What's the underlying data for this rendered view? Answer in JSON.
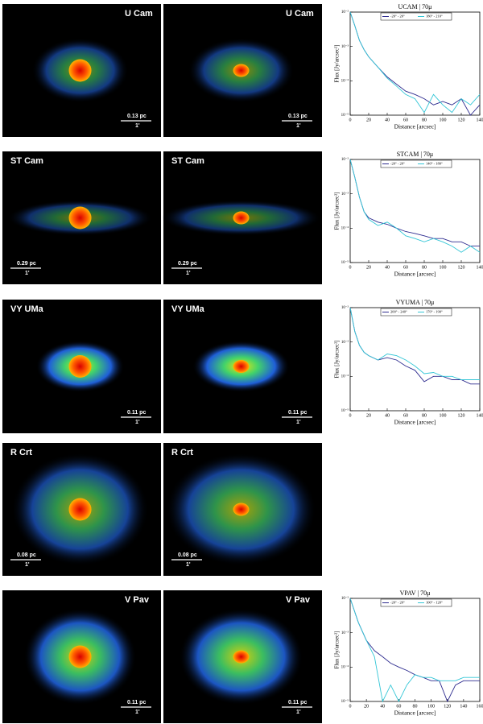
{
  "rows": [
    {
      "left_label": "U Cam",
      "left_scale": "0.13 pc",
      "left_arcmin": "1'",
      "right_label": "U Cam",
      "right_scale": "0.13 pc",
      "right_arcmin": "1'"
    },
    {
      "left_label": "ST Cam",
      "left_scale": "0.29 pc",
      "left_arcmin": "1'",
      "right_label": "ST Cam",
      "right_scale": "0.29 pc",
      "right_arcmin": "1'"
    },
    {
      "left_label": "VY UMa",
      "left_scale": "0.11 pc",
      "left_arcmin": "1'",
      "right_label": "VY UMa",
      "right_scale": "0.11 pc",
      "right_arcmin": "1'"
    },
    {
      "left_label": "R Crt",
      "left_scale": "0.08 pc",
      "left_arcmin": "1'",
      "right_label": "R Crt",
      "right_scale": "0.08 pc",
      "right_arcmin": "1'"
    },
    {
      "left_label": "V Pav",
      "left_scale": "0.11 pc",
      "left_arcmin": "1'",
      "right_label": "V Pav",
      "right_scale": "0.11 pc",
      "right_arcmin": "1'"
    }
  ],
  "chart_data": [
    {
      "type": "line",
      "title": "UCAM | 70μ",
      "xlabel": "Distance [arcsec]",
      "ylabel": "Flux [Jy/arcsec²]",
      "log_y": true,
      "x": [
        0,
        5,
        10,
        15,
        20,
        30,
        40,
        50,
        60,
        70,
        80,
        90,
        100,
        110,
        120,
        130,
        140
      ],
      "series": [
        {
          "name": "-20° - 20°",
          "color": "#2e2c8f",
          "values": [
            0.01,
            0.004,
            0.0015,
            0.0008,
            0.0005,
            0.00025,
            0.00013,
            8e-05,
            5e-05,
            4e-05,
            3e-05,
            2e-05,
            2.5e-05,
            2e-05,
            3e-05,
            1e-05,
            2e-05
          ]
        },
        {
          "name": "180° - 210°",
          "color": "#33c6d6",
          "values": [
            0.01,
            0.004,
            0.0015,
            0.0008,
            0.0005,
            0.00025,
            0.00012,
            7e-05,
            4e-05,
            3e-05,
            1.2e-05,
            4e-05,
            2e-05,
            1.2e-05,
            3e-05,
            2e-05,
            4e-05
          ]
        }
      ],
      "xlim": [
        0,
        140
      ],
      "xticks": [
        0,
        20,
        40,
        60,
        80,
        100,
        120,
        140
      ],
      "ylim": [
        1e-05,
        0.01
      ],
      "yticks": [
        {
          "value": 1e-05,
          "label": "10⁻⁵"
        },
        {
          "value": 0.0001,
          "label": "10⁻⁴"
        },
        {
          "value": 0.001,
          "label": "10⁻³"
        },
        {
          "value": 0.01,
          "label": "10⁻²"
        }
      ]
    },
    {
      "type": "line",
      "title": "STCAM | 70μ",
      "xlabel": "Distance [arcsec]",
      "ylabel": "Flux [Jy/arcsec²]",
      "log_y": true,
      "x": [
        0,
        5,
        10,
        15,
        20,
        30,
        40,
        50,
        60,
        70,
        80,
        90,
        100,
        110,
        120,
        130,
        140
      ],
      "series": [
        {
          "name": "-20° - 20°",
          "color": "#2e2c8f",
          "values": [
            0.01,
            0.003,
            0.0008,
            0.0003,
            0.0002,
            0.00015,
            0.00013,
            0.0001,
            8e-05,
            7e-05,
            6e-05,
            5e-05,
            5e-05,
            4e-05,
            4e-05,
            3e-05,
            3e-05
          ]
        },
        {
          "name": "140° - 180°",
          "color": "#33c6d6",
          "values": [
            0.01,
            0.003,
            0.0008,
            0.0003,
            0.00018,
            0.00012,
            0.00015,
            0.0001,
            6e-05,
            5e-05,
            4e-05,
            5e-05,
            4e-05,
            3e-05,
            2e-05,
            3e-05,
            2e-05
          ]
        }
      ],
      "xlim": [
        0,
        140
      ],
      "xticks": [
        0,
        20,
        40,
        60,
        80,
        100,
        120,
        140
      ],
      "ylim": [
        1e-05,
        0.01
      ],
      "yticks": [
        {
          "value": 1e-05,
          "label": "10⁻⁵"
        },
        {
          "value": 0.0001,
          "label": "10⁻⁴"
        },
        {
          "value": 0.001,
          "label": "10⁻³"
        },
        {
          "value": 0.01,
          "label": "10⁻²"
        }
      ]
    },
    {
      "type": "line",
      "title": "VYUMA | 70μ",
      "xlabel": "Distance [arcsec]",
      "ylabel": "Flux [Jy/arcsec²]",
      "log_y": true,
      "x": [
        0,
        5,
        10,
        15,
        20,
        30,
        40,
        50,
        60,
        70,
        80,
        90,
        100,
        110,
        120,
        130,
        140
      ],
      "series": [
        {
          "name": "200° - 240°",
          "color": "#2e2c8f",
          "values": [
            0.01,
            0.002,
            0.0008,
            0.0005,
            0.0004,
            0.0003,
            0.00035,
            0.0003,
            0.0002,
            0.00015,
            7e-05,
            0.0001,
            0.0001,
            8e-05,
            8e-05,
            6e-05,
            6e-05
          ]
        },
        {
          "name": "170° - 190°",
          "color": "#33c6d6",
          "values": [
            0.01,
            0.002,
            0.0008,
            0.0005,
            0.0004,
            0.0003,
            0.00045,
            0.0004,
            0.0003,
            0.0002,
            0.00012,
            0.00013,
            0.0001,
            0.0001,
            8e-05,
            8e-05,
            8e-05
          ]
        }
      ],
      "xlim": [
        0,
        140
      ],
      "xticks": [
        0,
        20,
        40,
        60,
        80,
        100,
        120,
        140
      ],
      "ylim": [
        1e-05,
        0.01
      ],
      "yticks": [
        {
          "value": 1e-05,
          "label": "10⁻⁵"
        },
        {
          "value": 0.0001,
          "label": "10⁻⁴"
        },
        {
          "value": 0.001,
          "label": "10⁻³"
        },
        {
          "value": 0.01,
          "label": "10⁻²"
        }
      ]
    },
    {
      "type": "line",
      "title": "VPAV | 70μ",
      "xlabel": "Distance [arcsec]",
      "ylabel": "Flux [Jy/arcsec²]",
      "log_y": true,
      "x": [
        0,
        10,
        20,
        30,
        40,
        50,
        60,
        70,
        80,
        90,
        100,
        110,
        120,
        130,
        140,
        150,
        160
      ],
      "series": [
        {
          "name": "-20° - 20°",
          "color": "#2e2c8f",
          "values": [
            0.01,
            0.002,
            0.0006,
            0.0003,
            0.0002,
            0.00013,
            0.0001,
            8e-05,
            6e-05,
            5e-05,
            4e-05,
            4e-05,
            1e-05,
            3e-05,
            4e-05,
            4e-05,
            4e-05
          ]
        },
        {
          "name": "100° - 120°",
          "color": "#33c6d6",
          "values": [
            0.01,
            0.002,
            0.0006,
            0.0002,
            1e-05,
            3e-05,
            1e-05,
            3e-05,
            6e-05,
            5e-05,
            5e-05,
            4e-05,
            4e-05,
            4e-05,
            5e-05,
            5e-05,
            5e-05
          ]
        }
      ],
      "xlim": [
        0,
        160
      ],
      "xticks": [
        0,
        20,
        40,
        60,
        80,
        100,
        120,
        140,
        160
      ],
      "ylim": [
        1e-05,
        0.01
      ],
      "yticks": [
        {
          "value": 1e-05,
          "label": "10⁻⁵"
        },
        {
          "value": 0.0001,
          "label": "10⁻⁴"
        },
        {
          "value": 0.001,
          "label": "10⁻³"
        },
        {
          "value": 0.01,
          "label": "10⁻²"
        }
      ]
    }
  ]
}
